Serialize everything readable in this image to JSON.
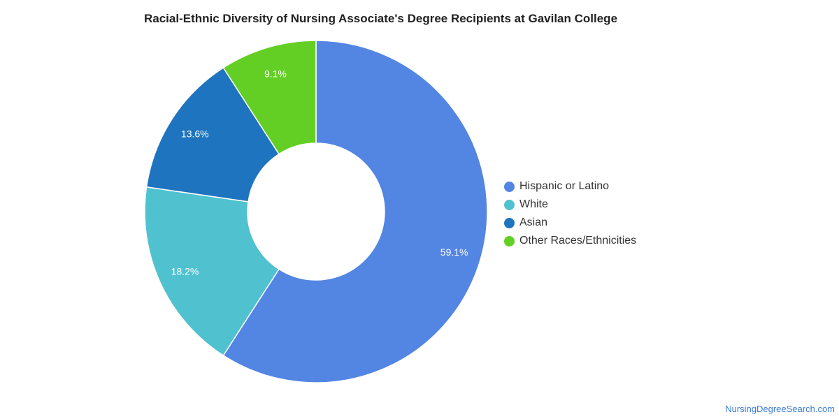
{
  "chart_data": {
    "type": "pie",
    "variant": "donut",
    "title": "Racial-Ethnic Diversity of Nursing Associate's Degree Recipients at Gavilan College",
    "slices": [
      {
        "label": "Hispanic or Latino",
        "value": 59.1,
        "value_label": "59.1%",
        "color": "#5385e3"
      },
      {
        "label": "White",
        "value": 18.2,
        "value_label": "18.2%",
        "color": "#50c1cf"
      },
      {
        "label": "Asian",
        "value": 13.6,
        "value_label": "13.6%",
        "color": "#1f74bf"
      },
      {
        "label": "Other Races/Ethnicities",
        "value": 9.1,
        "value_label": "9.1%",
        "color": "#63cf24"
      }
    ],
    "legend_position": "right"
  },
  "source": {
    "text": "NursingDegreeSearch.com",
    "color": "#3a7bd5"
  }
}
